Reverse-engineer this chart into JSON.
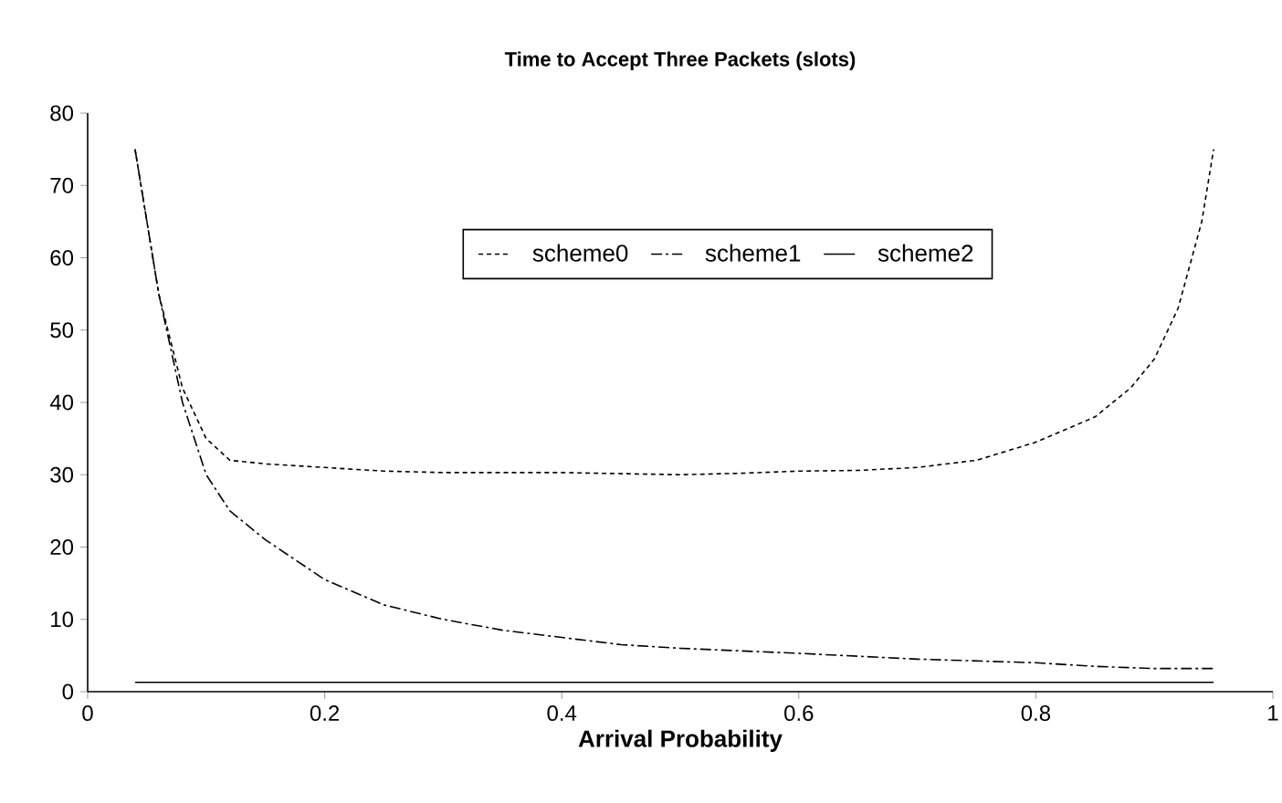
{
  "chart_data": {
    "type": "line",
    "title": "Time to Accept Three Packets (slots)",
    "xlabel": "Arrival Probability",
    "xlim": [
      0,
      1
    ],
    "xticks": [
      0,
      0.2,
      0.4,
      0.6,
      0.8,
      1
    ],
    "ylim": [
      0,
      80
    ],
    "yticks": [
      0,
      10,
      20,
      30,
      40,
      50,
      60,
      70,
      80
    ],
    "grid": false,
    "legend": "top",
    "series": [
      {
        "name": "scheme0",
        "color": "#000000",
        "line_style": "dotted",
        "x": [
          0.04,
          0.06,
          0.08,
          0.1,
          0.12,
          0.15,
          0.2,
          0.25,
          0.3,
          0.4,
          0.5,
          0.55,
          0.6,
          0.65,
          0.7,
          0.75,
          0.8,
          0.85,
          0.88,
          0.9,
          0.92,
          0.94,
          0.95
        ],
        "values": [
          75,
          55,
          42,
          35,
          32,
          31.5,
          31,
          30.5,
          30.3,
          30.3,
          30,
          30.2,
          30.5,
          30.6,
          31,
          32,
          34.5,
          38,
          42,
          46,
          53,
          65,
          75
        ]
      },
      {
        "name": "scheme1",
        "color": "#000000",
        "line_style": "dashed",
        "x": [
          0.04,
          0.06,
          0.08,
          0.1,
          0.12,
          0.15,
          0.2,
          0.25,
          0.3,
          0.35,
          0.4,
          0.45,
          0.5,
          0.6,
          0.7,
          0.8,
          0.85,
          0.9,
          0.95
        ],
        "values": [
          75,
          55,
          40,
          30,
          25,
          21,
          15.5,
          12,
          10,
          8.5,
          7.5,
          6.5,
          6,
          5.3,
          4.5,
          4,
          3.5,
          3.2,
          3.2
        ]
      },
      {
        "name": "scheme2",
        "color": "#000000",
        "line_style": "solid",
        "x": [
          0.04,
          0.95
        ],
        "values": [
          1.3,
          1.3
        ]
      }
    ]
  }
}
